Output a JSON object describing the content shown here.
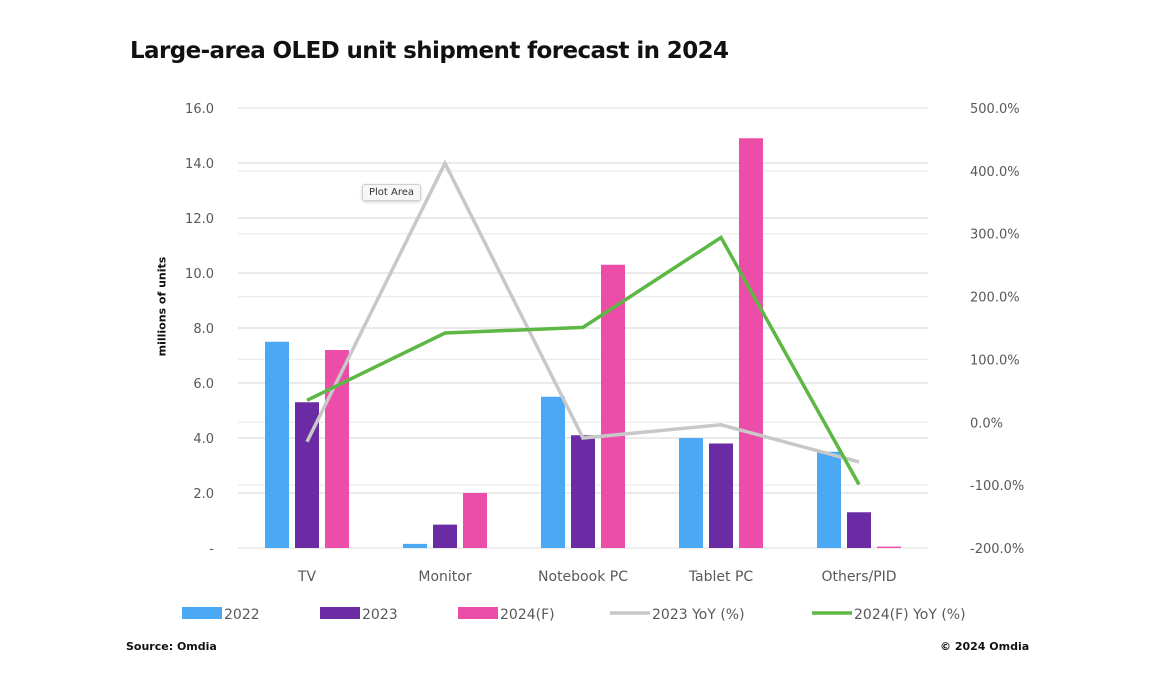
{
  "chart_data": {
    "type": "bar",
    "title": "Large-area OLED unit shipment forecast in 2024",
    "ylabel": "millions of units",
    "y2label": "",
    "categories": [
      "TV",
      "Monitor",
      "Notebook PC",
      "Tablet PC",
      "Others/PID"
    ],
    "ylim": [
      0,
      16
    ],
    "y_ticks": [
      "-",
      "2.0",
      "4.0",
      "6.0",
      "8.0",
      "10.0",
      "12.0",
      "14.0",
      "16.0"
    ],
    "y2lim": [
      -200,
      500
    ],
    "y2_ticks": [
      "-200.0%",
      "-100.0%",
      "0.0%",
      "100.0%",
      "200.0%",
      "300.0%",
      "400.0%",
      "500.0%"
    ],
    "grid": true,
    "legend_position": "bottom",
    "series": [
      {
        "name": "2022",
        "type": "bar",
        "axis": "left",
        "color": "#4BA8F5",
        "values": [
          7.5,
          0.15,
          5.5,
          4.0,
          3.5
        ]
      },
      {
        "name": "2023",
        "type": "bar",
        "axis": "left",
        "color": "#6A2BA5",
        "values": [
          5.3,
          0.85,
          4.1,
          3.8,
          1.3
        ]
      },
      {
        "name": "2024(F)",
        "type": "bar",
        "axis": "left",
        "color": "#EC4DA9",
        "values": [
          7.2,
          2.0,
          10.3,
          14.9,
          0.05
        ]
      },
      {
        "name": "2023 YoY (%)",
        "type": "line",
        "axis": "right",
        "color": "#C8C8C8",
        "values": [
          -31,
          412,
          -25,
          -4,
          -63
        ]
      },
      {
        "name": "2024(F) YoY (%)",
        "type": "line",
        "axis": "right",
        "color": "#5DB744",
        "values": [
          35,
          142,
          151,
          294,
          -99
        ]
      }
    ],
    "tooltip": "Plot Area"
  },
  "footer": {
    "source": "Source: Omdia",
    "copyright": "© 2024 Omdia"
  }
}
